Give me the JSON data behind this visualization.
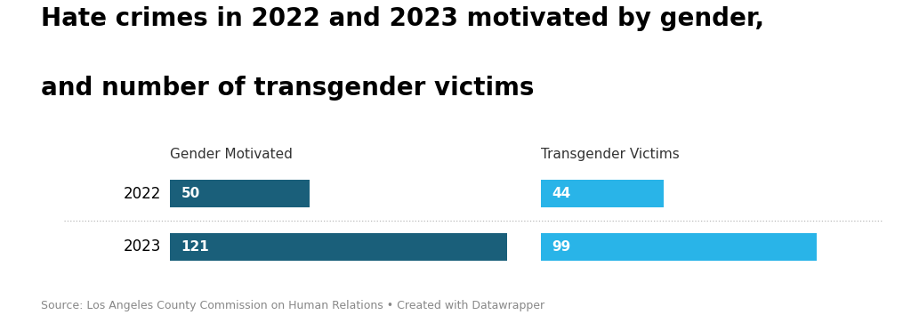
{
  "title_line1": "Hate crimes in 2022 and 2023 motivated by gender,",
  "title_line2": "and number of transgender victims",
  "col1_label": "Gender Motivated",
  "col2_label": "Transgender Victims",
  "years": [
    "2022",
    "2023"
  ],
  "gender_values": [
    50,
    121
  ],
  "trans_values": [
    44,
    99
  ],
  "max_value": 121,
  "gender_color": "#1a5f7a",
  "trans_color": "#29b4e8",
  "bar_height": 0.52,
  "source_text": "Source: Los Angeles County Commission on Human Relations • Created with Datawrapper",
  "background_color": "#ffffff",
  "text_color": "#000000",
  "label_color": "#ffffff",
  "source_color": "#888888",
  "col_header_color": "#333333",
  "separator_color": "#bbbbbb",
  "title_fontsize": 20,
  "year_fontsize": 12,
  "col_header_fontsize": 11,
  "bar_label_fontsize": 11,
  "source_fontsize": 9
}
